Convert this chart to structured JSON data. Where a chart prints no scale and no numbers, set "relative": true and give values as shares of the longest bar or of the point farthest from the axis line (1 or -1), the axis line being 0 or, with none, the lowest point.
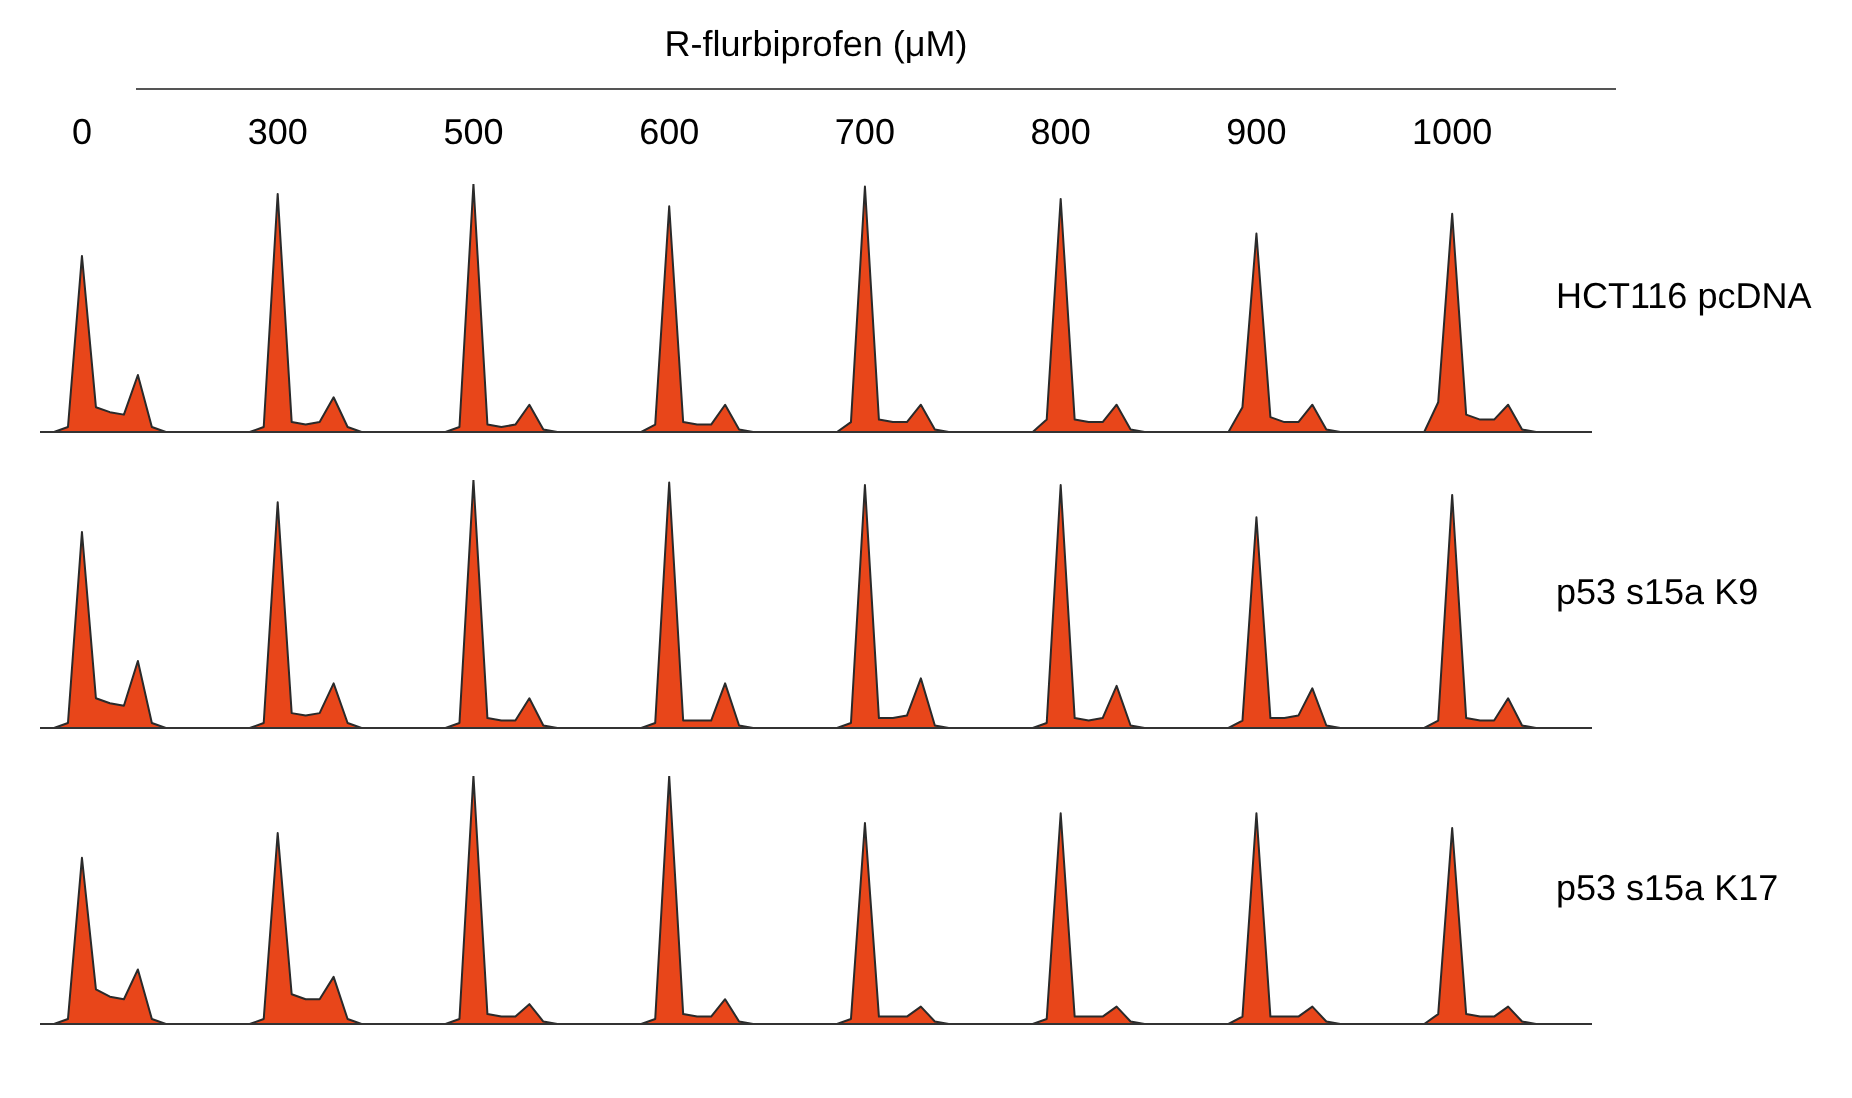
{
  "chart_data": [
    {
      "type": "area",
      "relative": true,
      "title": "R-flurbiprofen (μM)",
      "annotations": [
        "0",
        "300",
        "500",
        "600",
        "700",
        "800",
        "900",
        "1000"
      ],
      "categories": [
        null,
        null,
        null,
        null,
        null,
        null,
        null,
        null,
        null,
        null,
        null,
        null,
        null,
        null,
        null,
        null,
        null,
        null,
        null,
        null,
        null,
        null,
        null,
        null,
        null,
        null,
        null,
        null,
        null,
        null,
        null,
        null,
        null,
        null,
        null,
        null,
        null,
        null,
        null,
        null,
        null,
        null,
        null,
        null,
        null,
        null,
        null,
        null,
        null,
        null,
        null,
        null,
        null,
        null,
        null,
        null,
        null,
        null,
        null,
        null,
        null,
        null,
        null,
        null,
        null,
        null,
        null,
        null,
        null,
        null,
        null,
        null,
        null,
        null,
        null,
        null,
        null,
        null,
        null,
        null,
        null,
        null,
        null,
        null,
        null,
        null,
        null,
        null,
        null,
        null,
        null,
        null,
        null,
        null,
        null,
        null,
        null,
        null,
        null,
        null,
        null,
        null,
        null,
        null,
        null,
        null,
        null,
        null,
        null,
        null,
        null,
        null
      ],
      "series": [
        {
          "name": "HCT116 pcDNA",
          "color": "#e8461a",
          "values": [
            0,
            0,
            0.02,
            0.71,
            0.1,
            0.08,
            0.07,
            0.23,
            0.02,
            0,
            0,
            0,
            0,
            0,
            0,
            0,
            0.02,
            0.96,
            0.04,
            0.03,
            0.04,
            0.14,
            0.02,
            0,
            0,
            0,
            0,
            0,
            0,
            0,
            0.02,
            1,
            0.03,
            0.02,
            0.03,
            0.11,
            0.01,
            0,
            0,
            0,
            0,
            0,
            0,
            0,
            0.03,
            0.91,
            0.04,
            0.03,
            0.03,
            0.11,
            0.01,
            0,
            0,
            0,
            0,
            0,
            0,
            0,
            0.04,
            0.99,
            0.05,
            0.04,
            0.04,
            0.11,
            0.01,
            0,
            0,
            0,
            0,
            0,
            0,
            0,
            0.05,
            0.94,
            0.05,
            0.04,
            0.04,
            0.11,
            0.01,
            0,
            0,
            0,
            0,
            0,
            0,
            0,
            0.1,
            0.8,
            0.06,
            0.04,
            0.04,
            0.11,
            0.01,
            0,
            0,
            0,
            0,
            0,
            0,
            0,
            0.12,
            0.88,
            0.07,
            0.05,
            0.05,
            0.11,
            0.01,
            0,
            0,
            0,
            0,
            0
          ]
        }
      ]
    },
    {
      "type": "area",
      "relative": true,
      "categories": [
        null,
        null,
        null,
        null,
        null,
        null,
        null,
        null,
        null,
        null,
        null,
        null,
        null,
        null,
        null,
        null,
        null,
        null,
        null,
        null,
        null,
        null,
        null,
        null,
        null,
        null,
        null,
        null,
        null,
        null,
        null,
        null,
        null,
        null,
        null,
        null,
        null,
        null,
        null,
        null,
        null,
        null,
        null,
        null,
        null,
        null,
        null,
        null,
        null,
        null,
        null,
        null,
        null,
        null,
        null,
        null,
        null,
        null,
        null,
        null,
        null,
        null,
        null,
        null,
        null,
        null,
        null,
        null,
        null,
        null,
        null,
        null,
        null,
        null,
        null,
        null,
        null,
        null,
        null,
        null,
        null,
        null,
        null,
        null,
        null,
        null,
        null,
        null,
        null,
        null,
        null,
        null,
        null,
        null,
        null,
        null,
        null,
        null,
        null,
        null,
        null,
        null,
        null,
        null,
        null,
        null,
        null,
        null,
        null,
        null,
        null,
        null
      ],
      "series": [
        {
          "name": "p53 s15a K9",
          "color": "#e8461a",
          "values": [
            0,
            0,
            0.02,
            0.79,
            0.12,
            0.1,
            0.09,
            0.27,
            0.02,
            0,
            0,
            0,
            0,
            0,
            0,
            0,
            0.02,
            0.91,
            0.06,
            0.05,
            0.06,
            0.18,
            0.02,
            0,
            0,
            0,
            0,
            0,
            0,
            0,
            0.02,
            1,
            0.04,
            0.03,
            0.03,
            0.12,
            0.01,
            0,
            0,
            0,
            0,
            0,
            0,
            0,
            0.02,
            0.99,
            0.03,
            0.03,
            0.03,
            0.18,
            0.01,
            0,
            0,
            0,
            0,
            0,
            0,
            0,
            0.02,
            0.98,
            0.04,
            0.04,
            0.05,
            0.2,
            0.01,
            0,
            0,
            0,
            0,
            0,
            0,
            0,
            0.02,
            0.98,
            0.04,
            0.03,
            0.04,
            0.17,
            0.01,
            0,
            0,
            0,
            0,
            0,
            0,
            0,
            0.03,
            0.85,
            0.04,
            0.04,
            0.05,
            0.16,
            0.01,
            0,
            0,
            0,
            0,
            0,
            0,
            0,
            0.03,
            0.94,
            0.04,
            0.03,
            0.03,
            0.12,
            0.01,
            0,
            0,
            0,
            0,
            0
          ]
        }
      ]
    },
    {
      "type": "area",
      "relative": true,
      "categories": [
        null,
        null,
        null,
        null,
        null,
        null,
        null,
        null,
        null,
        null,
        null,
        null,
        null,
        null,
        null,
        null,
        null,
        null,
        null,
        null,
        null,
        null,
        null,
        null,
        null,
        null,
        null,
        null,
        null,
        null,
        null,
        null,
        null,
        null,
        null,
        null,
        null,
        null,
        null,
        null,
        null,
        null,
        null,
        null,
        null,
        null,
        null,
        null,
        null,
        null,
        null,
        null,
        null,
        null,
        null,
        null,
        null,
        null,
        null,
        null,
        null,
        null,
        null,
        null,
        null,
        null,
        null,
        null,
        null,
        null,
        null,
        null,
        null,
        null,
        null,
        null,
        null,
        null,
        null,
        null,
        null,
        null,
        null,
        null,
        null,
        null,
        null,
        null,
        null,
        null,
        null,
        null,
        null,
        null,
        null,
        null,
        null,
        null,
        null,
        null,
        null,
        null,
        null,
        null,
        null,
        null,
        null,
        null,
        null,
        null,
        null,
        null
      ],
      "series": [
        {
          "name": "p53 s15a K17",
          "color": "#e8461a",
          "values": [
            0,
            0,
            0.02,
            0.67,
            0.14,
            0.11,
            0.1,
            0.22,
            0.02,
            0,
            0,
            0,
            0,
            0,
            0,
            0,
            0.02,
            0.77,
            0.12,
            0.1,
            0.1,
            0.19,
            0.02,
            0,
            0,
            0,
            0,
            0,
            0,
            0,
            0.02,
            1,
            0.04,
            0.03,
            0.03,
            0.08,
            0.01,
            0,
            0,
            0,
            0,
            0,
            0,
            0,
            0.02,
            1,
            0.04,
            0.03,
            0.03,
            0.1,
            0.01,
            0,
            0,
            0,
            0,
            0,
            0,
            0,
            0.02,
            0.81,
            0.03,
            0.03,
            0.03,
            0.07,
            0.01,
            0,
            0,
            0,
            0,
            0,
            0,
            0,
            0.02,
            0.85,
            0.03,
            0.03,
            0.03,
            0.07,
            0.01,
            0,
            0,
            0,
            0,
            0,
            0,
            0,
            0.03,
            0.85,
            0.03,
            0.03,
            0.03,
            0.07,
            0.01,
            0,
            0,
            0,
            0,
            0,
            0,
            0,
            0.04,
            0.79,
            0.04,
            0.03,
            0.03,
            0.07,
            0.01,
            0,
            0,
            0,
            0,
            0
          ]
        }
      ]
    }
  ]
}
